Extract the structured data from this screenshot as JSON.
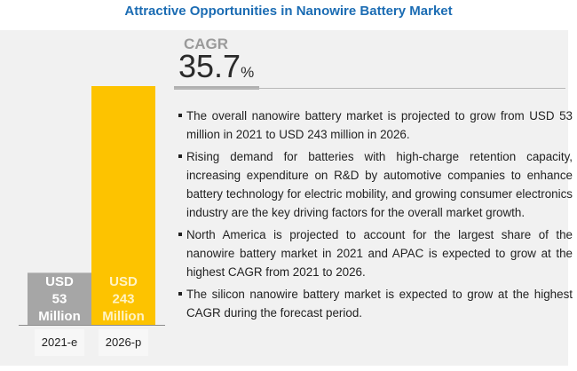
{
  "title": "Attractive Opportunities in Nanowire Battery Market",
  "cagr": {
    "label": "CAGR",
    "value": "35.7",
    "unit": "%"
  },
  "chart_data": {
    "type": "bar",
    "categories": [
      "2021-e",
      "2026-p"
    ],
    "values": [
      53,
      243
    ],
    "data_labels": [
      [
        "USD",
        "53",
        "Million"
      ],
      [
        "USD",
        "243",
        "Million"
      ]
    ],
    "colors": [
      "#a6a6a6",
      "#fdc300"
    ],
    "label_colors": [
      "#ffffff",
      "#fff3c4"
    ],
    "ylim": [
      0,
      243
    ]
  },
  "bullets": [
    "The overall nanowire battery market is projected to grow from USD 53 million in 2021 to USD 243 million in 2026.",
    "Rising demand for batteries with high-charge retention capacity, increasing expenditure on R&D by automotive companies to enhance battery technology for electric mobility, and growing consumer electronics industry are the key driving factors for the overall market growth.",
    "North America is projected to account for the largest share of the nanowire battery market in 2021 and APAC is expected to grow at the highest CAGR from 2021 to 2026.",
    "The silicon nanowire battery market is expected to grow at the highest CAGR during the forecast period."
  ]
}
